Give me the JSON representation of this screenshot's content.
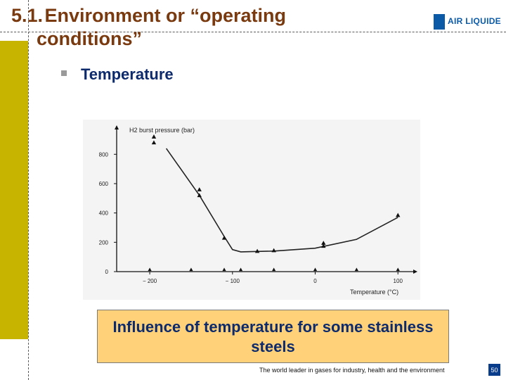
{
  "header": {
    "section_number": "5.1.",
    "title_line1": "Environment or “operating",
    "title_line2": "conditions”",
    "logo_text": "AIR LIQUIDE"
  },
  "content": {
    "bullet_label": "Temperature",
    "caption": "Influence of temperature for some stainless steels"
  },
  "footer": {
    "tagline": "The world leader in gases for industry, health and the environment",
    "page_number": "50"
  },
  "colors": {
    "title": "#7a3a10",
    "accent_bar": "#c6b400",
    "heading_blue": "#0c2a6c",
    "caption_bg": "#ffd27a",
    "logo_blue": "#0a5aa8"
  },
  "chart_data": {
    "type": "line",
    "ylabel": "H2 burst pressure (bar)",
    "xlabel": "Temperature (°C)",
    "xlim": [
      -240,
      110
    ],
    "ylim": [
      0,
      950
    ],
    "x_ticks": [
      -200,
      -100,
      0,
      100
    ],
    "y_ticks": [
      0,
      200,
      400,
      600,
      800
    ],
    "curve": [
      {
        "x": -180,
        "y": 840
      },
      {
        "x": -140,
        "y": 520
      },
      {
        "x": -110,
        "y": 240
      },
      {
        "x": -100,
        "y": 150
      },
      {
        "x": -90,
        "y": 135
      },
      {
        "x": -50,
        "y": 140
      },
      {
        "x": 0,
        "y": 160
      },
      {
        "x": 50,
        "y": 220
      },
      {
        "x": 100,
        "y": 370
      }
    ],
    "points": [
      {
        "x": -195,
        "y": 920
      },
      {
        "x": -195,
        "y": 880
      },
      {
        "x": -140,
        "y": 560
      },
      {
        "x": -140,
        "y": 520
      },
      {
        "x": -110,
        "y": 230
      },
      {
        "x": -70,
        "y": 140
      },
      {
        "x": -50,
        "y": 145
      },
      {
        "x": 10,
        "y": 195
      },
      {
        "x": 10,
        "y": 175
      },
      {
        "x": 100,
        "y": 385
      }
    ],
    "x_axis_markers": [
      -200,
      -150,
      -110,
      -90,
      -50,
      0,
      50,
      100
    ]
  }
}
